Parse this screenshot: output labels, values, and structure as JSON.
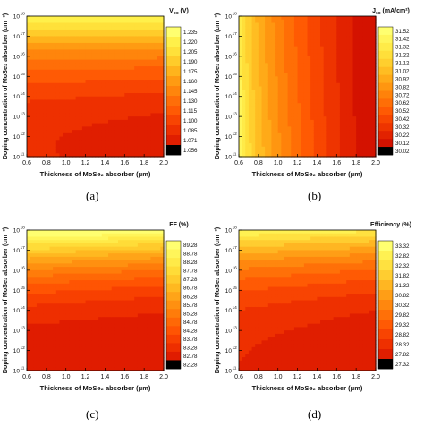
{
  "x_ticks": [
    "0.6",
    "0.8",
    "1.0",
    "1.2",
    "1.4",
    "1.6",
    "1.8",
    "2.0"
  ],
  "y_ticks": [
    "10",
    "10",
    "10",
    "10",
    "10",
    "10",
    "10",
    "10"
  ],
  "y_tick_exps": [
    "11",
    "12",
    "13",
    "14",
    "15",
    "16",
    "17",
    "18"
  ],
  "xlabel": "Thickness of MoSe₂ absorber (μm)",
  "ylabel": "Doping concentration of MoSe₂ absorber (cm⁻³)",
  "chart_data": [
    {
      "panel": "(a)",
      "type": "heatmap",
      "title": "V",
      "title_sub": "oc",
      "title_unit": " (V)",
      "x": [
        0.6,
        2.0
      ],
      "ylim_log10": [
        11,
        18
      ],
      "colorbar_ticks": [
        "1.235",
        "1.220",
        "1.205",
        "1.190",
        "1.175",
        "1.160",
        "1.145",
        "1.130",
        "1.115",
        "1.100",
        "1.085",
        "1.071",
        "1.056"
      ],
      "colors": [
        "#ffff70",
        "#fff04a",
        "#ffe13a",
        "#ffcc2a",
        "#ffb41c",
        "#ff9b12",
        "#ff850c",
        "#ff6e08",
        "#ff5a04",
        "#f84402",
        "#ee3000",
        "#e01e00",
        "#000000"
      ]
    },
    {
      "panel": "(b)",
      "type": "heatmap",
      "title": "J",
      "title_sub": "sc",
      "title_unit": " (mA/cm²)",
      "x": [
        0.6,
        2.0
      ],
      "ylim_log10": [
        11,
        18
      ],
      "colorbar_ticks": [
        "31.52",
        "31.42",
        "31.32",
        "31.22",
        "31.12",
        "31.02",
        "30.92",
        "30.82",
        "30.72",
        "30.62",
        "30.52",
        "30.42",
        "30.32",
        "30.22",
        "30.12",
        "30.02"
      ],
      "colors": [
        "#ffff70",
        "#fff55a",
        "#ffeb48",
        "#ffdf3a",
        "#ffcf2e",
        "#ffbd22",
        "#ffaa18",
        "#ff9610",
        "#ff820a",
        "#ff6e06",
        "#ff5a03",
        "#f84601",
        "#ee3400",
        "#e22200",
        "#d41200",
        "#000000"
      ]
    },
    {
      "panel": "(c)",
      "type": "heatmap",
      "title": "FF (%)",
      "x": [
        0.6,
        2.0
      ],
      "ylim_log10": [
        11,
        18
      ],
      "colorbar_ticks": [
        "89.28",
        "88.78",
        "88.28",
        "87.78",
        "87.28",
        "86.78",
        "86.28",
        "85.78",
        "85.28",
        "84.78",
        "84.28",
        "83.78",
        "83.28",
        "82.78",
        "82.28"
      ],
      "colors": [
        "#ffff70",
        "#fff55a",
        "#ffea48",
        "#ffdc38",
        "#ffcb2c",
        "#ffb820",
        "#ffa418",
        "#ff9010",
        "#ff7c0a",
        "#ff6806",
        "#ff5403",
        "#f84001",
        "#ee2e00",
        "#e01c00",
        "#000000"
      ]
    },
    {
      "panel": "(d)",
      "type": "heatmap",
      "title": "Efficiency (%)",
      "x": [
        0.6,
        2.0
      ],
      "ylim_log10": [
        11,
        18
      ],
      "colorbar_ticks": [
        "33.32",
        "32.82",
        "32.32",
        "31.82",
        "31.32",
        "30.82",
        "30.32",
        "29.82",
        "29.32",
        "28.82",
        "28.32",
        "27.82",
        "27.32"
      ],
      "colors": [
        "#ffff70",
        "#fff152",
        "#ffe140",
        "#ffcd30",
        "#ffb622",
        "#ff9e16",
        "#ff870e",
        "#ff7008",
        "#ff5a04",
        "#f84402",
        "#ee3000",
        "#e01e00",
        "#000000"
      ]
    }
  ]
}
